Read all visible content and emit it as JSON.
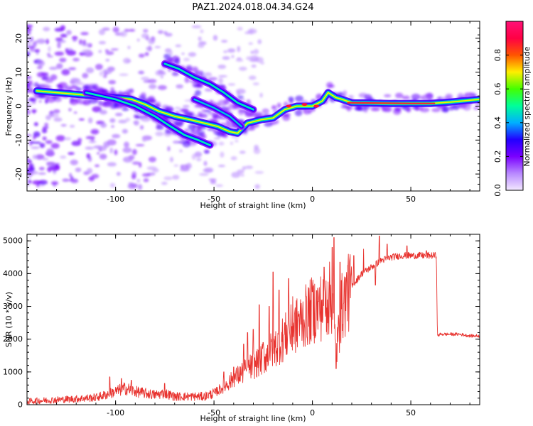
{
  "title": "PAZ1.2024.018.04.34.G24",
  "chart_data": [
    {
      "type": "heatmap",
      "xlabel": "Height of straight line (km)",
      "ylabel": "Frequency (Hz)",
      "xlim": [
        -145,
        85
      ],
      "ylim": [
        -25,
        25
      ],
      "xticks": [
        -100,
        -50,
        0,
        50
      ],
      "xtick_labels": [
        "-100",
        "-50",
        "0",
        "50"
      ],
      "yticks": [
        -20,
        -10,
        0,
        10,
        20
      ],
      "ytick_labels": [
        "-20",
        "-10",
        "0",
        "10",
        "20"
      ],
      "colorbar": {
        "label": "Normalized spectral amplitude",
        "range": [
          0.0,
          1.0
        ],
        "ticks": [
          0.0,
          0.2,
          0.4,
          0.6,
          0.8
        ],
        "tick_labels": [
          "0.0",
          "0.2",
          "0.4",
          "0.6",
          "0.8"
        ],
        "colors": [
          "#f3e9ff",
          "#b888ff",
          "#7a00ff",
          "#2200ff",
          "#00b0ff",
          "#00ff99",
          "#44ff00",
          "#ffee00",
          "#ff5500",
          "#ff0044",
          "#ff1177"
        ]
      },
      "ridges": [
        {
          "name": "main",
          "points": [
            [
              -140,
              4.5
            ],
            [
              -130,
              4
            ],
            [
              -120,
              3.5
            ],
            [
              -110,
              3
            ],
            [
              -100,
              2.5
            ],
            [
              -92,
              2
            ],
            [
              -85,
              0.5
            ],
            [
              -78,
              -1.5
            ],
            [
              -70,
              -3
            ],
            [
              -62,
              -4
            ],
            [
              -55,
              -5
            ],
            [
              -48,
              -6
            ],
            [
              -42,
              -7.5
            ],
            [
              -38,
              -8
            ],
            [
              -33,
              -5
            ],
            [
              -26,
              -4
            ],
            [
              -20,
              -3.5
            ],
            [
              -14,
              -1
            ],
            [
              -8,
              0
            ],
            [
              0,
              0
            ],
            [
              5,
              1.5
            ],
            [
              8,
              4
            ],
            [
              12,
              2.5
            ],
            [
              15,
              2
            ],
            [
              20,
              1
            ],
            [
              40,
              0.8
            ],
            [
              60,
              0.8
            ],
            [
              70,
              1.2
            ],
            [
              85,
              2
            ]
          ],
          "amplitude": 0.7
        },
        {
          "name": "upper",
          "points": [
            [
              -75,
              12.5
            ],
            [
              -68,
              11
            ],
            [
              -60,
              8.5
            ],
            [
              -52,
              6.5
            ],
            [
              -45,
              4
            ],
            [
              -38,
              1
            ],
            [
              -30,
              -1
            ]
          ],
          "amplitude": 0.5
        },
        {
          "name": "lower",
          "points": [
            [
              -115,
              4
            ],
            [
              -100,
              2
            ],
            [
              -90,
              0
            ],
            [
              -80,
              -3
            ],
            [
              -72,
              -6
            ],
            [
              -65,
              -8.5
            ],
            [
              -58,
              -10
            ],
            [
              -52,
              -11.5
            ]
          ],
          "amplitude": 0.5
        },
        {
          "name": "mid",
          "points": [
            [
              -60,
              2
            ],
            [
              -50,
              -0.5
            ],
            [
              -42,
              -3
            ],
            [
              -36,
              -6
            ]
          ],
          "amplitude": 0.45
        }
      ]
    },
    {
      "type": "line",
      "xlabel": "Height of straight line (km)",
      "ylabel": "SNR (10 * v/v)",
      "xlim": [
        -145,
        85
      ],
      "ylim": [
        0,
        5200
      ],
      "xticks": [
        -100,
        -50,
        0,
        50
      ],
      "xtick_labels": [
        "-100",
        "-50",
        "0",
        "50"
      ],
      "yticks": [
        0,
        1000,
        2000,
        3000,
        4000,
        5000
      ],
      "ytick_labels": [
        "0",
        "1000",
        "2000",
        "3000",
        "4000",
        "5000"
      ],
      "series": [
        {
          "color": "#e8332f",
          "x": [
            -145,
            -140,
            -130,
            -120,
            -110,
            -105,
            -100,
            -95,
            -90,
            -85,
            -80,
            -75,
            -70,
            -65,
            -60,
            -55,
            -50,
            -45,
            -40,
            -35,
            -30,
            -25,
            -20,
            -15,
            -10,
            -5,
            0,
            5,
            10,
            12,
            15,
            20,
            25,
            30,
            35,
            40,
            45,
            50,
            55,
            60,
            63,
            63.5,
            65,
            70,
            75,
            80,
            85
          ],
          "y": [
            100,
            120,
            150,
            180,
            220,
            300,
            400,
            500,
            400,
            350,
            300,
            350,
            250,
            250,
            250,
            250,
            350,
            550,
            800,
            1000,
            1200,
            1400,
            1700,
            2000,
            2300,
            2600,
            2900,
            3000,
            3300,
            1500,
            3000,
            3600,
            4000,
            4200,
            4400,
            4500,
            4550,
            4550,
            4550,
            4550,
            4550,
            2100,
            2150,
            2150,
            2150,
            2100,
            2100
          ],
          "spikes": [
            [
              -103,
              850
            ],
            [
              -97,
              800
            ],
            [
              -92,
              750
            ],
            [
              -75,
              650
            ],
            [
              -45,
              1000
            ],
            [
              -40,
              1150
            ],
            [
              -35,
              1850
            ],
            [
              -33,
              2200
            ],
            [
              -30,
              2300
            ],
            [
              -27,
              3050
            ],
            [
              -25,
              1900
            ],
            [
              -22,
              3000
            ],
            [
              -20,
              4050
            ],
            [
              -17,
              3500
            ],
            [
              -14,
              2500
            ],
            [
              -12,
              3850
            ],
            [
              -10,
              3300
            ],
            [
              -7,
              2700
            ],
            [
              -3,
              3300
            ],
            [
              0,
              3450
            ],
            [
              3,
              3150
            ],
            [
              6,
              4200
            ],
            [
              8,
              3750
            ],
            [
              10,
              4800
            ],
            [
              11,
              5100
            ],
            [
              12,
              1100
            ],
            [
              14,
              4350
            ],
            [
              18,
              4250
            ],
            [
              21,
              4550
            ],
            [
              26,
              4750
            ],
            [
              32,
              3650
            ],
            [
              34,
              5150
            ],
            [
              38,
              4900
            ],
            [
              48,
              4850
            ],
            [
              58,
              4700
            ]
          ]
        }
      ]
    }
  ]
}
